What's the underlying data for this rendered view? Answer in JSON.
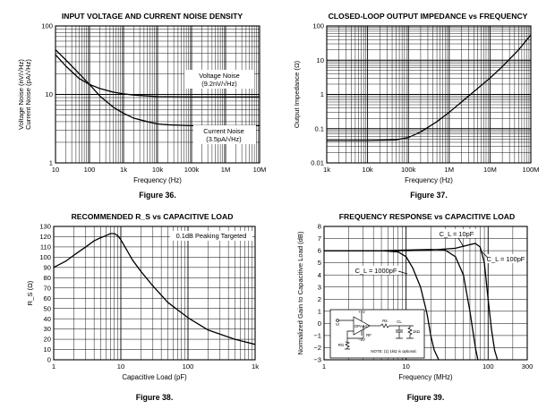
{
  "chart_data": [
    {
      "type": "line",
      "title": "INPUT VOLTAGE AND CURRENT NOISE DENSITY",
      "xlabel": "Frequency (Hz)",
      "ylabel": [
        "Voltage Noise (nV/√Hz)",
        "Current Noise (pA/√Hz)"
      ],
      "xscale": "log",
      "yscale": "log",
      "xlim": [
        10,
        10000000
      ],
      "ylim": [
        1,
        100
      ],
      "xticks": [
        {
          "v": 10,
          "label": "10"
        },
        {
          "v": 100,
          "label": "100"
        },
        {
          "v": 1000,
          "label": "1k"
        },
        {
          "v": 10000,
          "label": "10k"
        },
        {
          "v": 100000,
          "label": "100k"
        },
        {
          "v": 1000000,
          "label": "1M"
        },
        {
          "v": 10000000,
          "label": "10M"
        }
      ],
      "yticks": [
        {
          "v": 1,
          "label": "1"
        },
        {
          "v": 10,
          "label": "10"
        },
        {
          "v": 100,
          "label": "100"
        }
      ],
      "series": [
        {
          "name": "Voltage Noise",
          "x": [
            10,
            20,
            50,
            100,
            200,
            500,
            1000,
            2000,
            5000,
            10000,
            100000,
            1000000,
            10000000
          ],
          "y": [
            38,
            26,
            17,
            14,
            12.2,
            10.8,
            10.2,
            9.8,
            9.5,
            9.3,
            9.2,
            9.2,
            9.2
          ]
        },
        {
          "name": "Current Noise",
          "x": [
            10,
            20,
            50,
            100,
            200,
            500,
            1000,
            2000,
            5000,
            10000,
            20000,
            100000,
            1000000,
            10000000
          ],
          "y": [
            45,
            32,
            20,
            14,
            9.5,
            6.5,
            5.3,
            4.5,
            4.0,
            3.7,
            3.6,
            3.5,
            3.5,
            3.5
          ]
        }
      ],
      "annotations": [
        {
          "lines": [
            "Voltage Noise",
            "(9.2nV/√Hz)"
          ]
        },
        {
          "lines": [
            "Current Noise",
            "(3.5pA/√Hz)"
          ]
        }
      ],
      "caption": "Figure 36."
    },
    {
      "type": "line",
      "title": "CLOSED-LOOP OUTPUT IMPEDANCE vs FREQUENCY",
      "xlabel": "Frequency (Hz)",
      "ylabel": "Output Impedance (Ω)",
      "xscale": "log",
      "yscale": "log",
      "xlim": [
        1000,
        100000000
      ],
      "ylim": [
        0.01,
        100
      ],
      "xticks": [
        {
          "v": 1000,
          "label": "1k"
        },
        {
          "v": 10000,
          "label": "10k"
        },
        {
          "v": 100000,
          "label": "100k"
        },
        {
          "v": 1000000,
          "label": "1M"
        },
        {
          "v": 10000000,
          "label": "10M"
        },
        {
          "v": 100000000,
          "label": "100M"
        }
      ],
      "yticks": [
        {
          "v": 0.01,
          "label": "0.01"
        },
        {
          "v": 0.1,
          "label": "0.1"
        },
        {
          "v": 1,
          "label": "1"
        },
        {
          "v": 10,
          "label": "10"
        },
        {
          "v": 100,
          "label": "100"
        }
      ],
      "series": [
        {
          "name": "Output Impedance",
          "x": [
            1000,
            10000,
            50000,
            100000,
            200000,
            500000,
            1000000,
            2000000,
            5000000,
            10000000,
            20000000,
            50000000,
            100000000
          ],
          "y": [
            0.045,
            0.045,
            0.047,
            0.055,
            0.08,
            0.16,
            0.3,
            0.6,
            1.5,
            3,
            6.5,
            20,
            55
          ]
        }
      ],
      "caption": "Figure 37."
    },
    {
      "type": "line",
      "title": "RECOMMENDED R_S vs CAPACITIVE LOAD",
      "xlabel": "Capacitive Load (pF)",
      "ylabel": "R_S (Ω)",
      "xscale": "log",
      "yscale": "linear",
      "xlim": [
        1,
        1000
      ],
      "ylim": [
        0,
        130
      ],
      "xticks": [
        {
          "v": 1,
          "label": "1"
        },
        {
          "v": 10,
          "label": "10"
        },
        {
          "v": 100,
          "label": "100"
        },
        {
          "v": 1000,
          "label": "1k"
        }
      ],
      "yticks": [
        {
          "v": 0,
          "label": "0"
        },
        {
          "v": 10,
          "label": "10"
        },
        {
          "v": 20,
          "label": "20"
        },
        {
          "v": 30,
          "label": "30"
        },
        {
          "v": 40,
          "label": "40"
        },
        {
          "v": 50,
          "label": "50"
        },
        {
          "v": 60,
          "label": "60"
        },
        {
          "v": 70,
          "label": "70"
        },
        {
          "v": 80,
          "label": "80"
        },
        {
          "v": 90,
          "label": "90"
        },
        {
          "v": 100,
          "label": "100"
        },
        {
          "v": 110,
          "label": "110"
        },
        {
          "v": 120,
          "label": "120"
        },
        {
          "v": 130,
          "label": "130"
        }
      ],
      "series": [
        {
          "name": "R_S",
          "x": [
            1,
            1.5,
            2,
            3,
            4,
            5,
            6,
            7,
            8,
            9,
            10,
            12,
            15,
            20,
            30,
            50,
            100,
            200,
            500,
            1000
          ],
          "y": [
            90,
            96,
            102,
            110,
            116,
            119,
            121,
            123,
            123,
            121,
            117,
            108,
            97,
            86,
            72,
            56,
            41,
            29,
            20,
            15
          ]
        }
      ],
      "annotations": [
        {
          "text": "0.1dB Peaking Targeted"
        }
      ],
      "caption": "Figure 38."
    },
    {
      "type": "line",
      "title": "FREQUENCY RESPONSE vs CAPACITIVE LOAD",
      "xlabel": "Frequency (MHz)",
      "ylabel": "Normalized Gain to Capacitive Load (dB)",
      "xscale": "log",
      "yscale": "linear",
      "xlim": [
        1,
        300
      ],
      "ylim": [
        -3,
        8
      ],
      "xticks": [
        {
          "v": 1,
          "label": "1"
        },
        {
          "v": 10,
          "label": "10"
        },
        {
          "v": 100,
          "label": "100"
        },
        {
          "v": 300,
          "label": "300"
        }
      ],
      "yticks": [
        {
          "v": -3,
          "label": "−3"
        },
        {
          "v": -2,
          "label": "−2"
        },
        {
          "v": -1,
          "label": "−1"
        },
        {
          "v": 0,
          "label": "0"
        },
        {
          "v": 1,
          "label": "1"
        },
        {
          "v": 2,
          "label": "2"
        },
        {
          "v": 3,
          "label": "3"
        },
        {
          "v": 4,
          "label": "4"
        },
        {
          "v": 5,
          "label": "5"
        },
        {
          "v": 6,
          "label": "6"
        },
        {
          "v": 7,
          "label": "7"
        },
        {
          "v": 8,
          "label": "8"
        }
      ],
      "series": [
        {
          "name": "C_L = 1000pF",
          "x": [
            1,
            2,
            5,
            8,
            10,
            12,
            15,
            18,
            20,
            22,
            25
          ],
          "y": [
            6,
            6,
            6,
            5.9,
            5.5,
            4.6,
            3,
            0.8,
            -1,
            -2.2,
            -3
          ]
        },
        {
          "name": "C_L = 10pF",
          "x": [
            1,
            5,
            10,
            20,
            30,
            40,
            50,
            60,
            70,
            75
          ],
          "y": [
            6,
            6,
            6.05,
            6.1,
            6.05,
            5.5,
            4,
            1,
            -2,
            -3
          ]
        },
        {
          "name": "C_L = 100pF",
          "x": [
            1,
            10,
            20,
            40,
            60,
            70,
            80,
            90,
            100,
            110,
            120,
            130
          ],
          "y": [
            6,
            6,
            6.05,
            6.2,
            6.5,
            6.6,
            6.3,
            5,
            2,
            -0.5,
            -2.2,
            -3
          ]
        }
      ],
      "annotations": [
        {
          "text": "C_L = 10pF"
        },
        {
          "text": "C_L = 100pF"
        },
        {
          "text": "C_L = 1000pF"
        }
      ],
      "inset": {
        "opamp_label": "OPA847",
        "resistor_label": "Rs",
        "load_labels": [
          "CL",
          "1kΩ"
        ],
        "input_label": "VI",
        "supply_labels": [
          "+5V",
          "−5V"
        ],
        "feedback_labels": [
          "RF",
          "RG"
        ],
        "note": "NOTE: (1) 1kΩ is optional."
      },
      "caption": "Figure 39."
    }
  ]
}
